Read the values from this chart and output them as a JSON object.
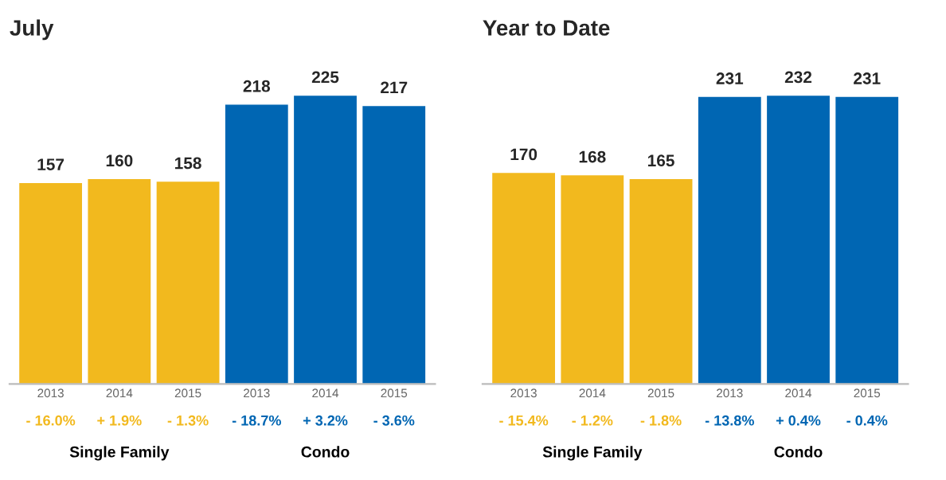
{
  "chart_data": [
    {
      "type": "bar",
      "title": "July",
      "categories": [
        "2013",
        "2014",
        "2015",
        "2013",
        "2014",
        "2015"
      ],
      "values": [
        157,
        160,
        158,
        218,
        225,
        217
      ],
      "colors": [
        "#f2b91e",
        "#f2b91e",
        "#f2b91e",
        "#0066b3",
        "#0066b3",
        "#0066b3"
      ],
      "data_labels": true,
      "annotations": [
        "- 16.0%",
        "+ 1.9%",
        "- 1.3%",
        "- 18.7%",
        "+ 3.2%",
        "- 3.6%",
        "Single Family",
        "Condo"
      ]
    },
    {
      "type": "bar",
      "title": "Year to Date",
      "categories": [
        "2013",
        "2014",
        "2015",
        "2013",
        "2014",
        "2015"
      ],
      "values": [
        170,
        168,
        165,
        231,
        232,
        231
      ],
      "colors": [
        "#f2b91e",
        "#f2b91e",
        "#f2b91e",
        "#0066b3",
        "#0066b3",
        "#0066b3"
      ],
      "data_labels": true,
      "annotations": [
        "- 15.4%",
        "- 1.2%",
        "- 1.8%",
        "- 13.8%",
        "+ 0.4%",
        "- 0.4%",
        "Single Family",
        "Condo"
      ]
    }
  ]
}
